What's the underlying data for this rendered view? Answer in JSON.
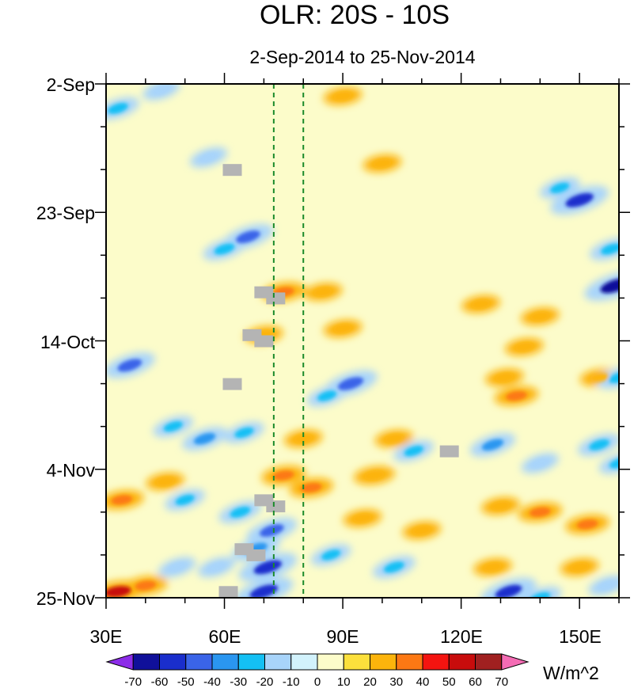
{
  "chart_data": {
    "type": "heatmap",
    "title": "OLR: 20S - 10S",
    "subtitle": "2-Sep-2014 to 25-Nov-2014",
    "x_axis": {
      "label": "",
      "range": [
        30,
        160
      ],
      "unit": "degrees east longitude",
      "ticks": [
        {
          "value": 30,
          "label": "30E"
        },
        {
          "value": 60,
          "label": "60E"
        },
        {
          "value": 90,
          "label": "90E"
        },
        {
          "value": 120,
          "label": "120E"
        },
        {
          "value": 150,
          "label": "150E"
        }
      ]
    },
    "y_axis": {
      "label": "",
      "range": [
        0,
        84
      ],
      "unit": "days since 2-Sep-2014 (time increases downward)",
      "ticks": [
        {
          "value": 0,
          "label": "2-Sep"
        },
        {
          "value": 21,
          "label": "23-Sep"
        },
        {
          "value": 42,
          "label": "14-Oct"
        },
        {
          "value": 63,
          "label": "4-Nov"
        },
        {
          "value": 84,
          "label": "25-Nov"
        }
      ]
    },
    "reference_lines": [
      {
        "name": "dashed-line-west",
        "lon": 72.5,
        "color": "#1a8a2a"
      },
      {
        "name": "dashed-line-east",
        "lon": 80,
        "color": "#1a8a2a"
      }
    ],
    "missing_color": "#b4b4b4",
    "colorbar": {
      "unit": "W/m^2",
      "levels": [
        "-70",
        "-60",
        "-50",
        "-40",
        "-30",
        "-20",
        "-10",
        "0",
        "10",
        "20",
        "30",
        "40",
        "50",
        "60",
        "70"
      ],
      "colors": [
        "#8c2ce8",
        "#10109a",
        "#1a2ecc",
        "#3a64e8",
        "#2a96f0",
        "#14c0f4",
        "#a8d4fa",
        "#d2f2fc",
        "#fcfcca",
        "#fce03c",
        "#fcb40c",
        "#fc7814",
        "#f41410",
        "#c80c0c",
        "#a02020",
        "#f46cb4"
      ]
    },
    "anomaly_features": [
      {
        "lon": 33,
        "day": 4,
        "value": -30
      },
      {
        "lon": 44,
        "day": 1,
        "value": -20
      },
      {
        "lon": 56,
        "day": 12,
        "value": -20
      },
      {
        "lon": 66,
        "day": 25,
        "value": -45
      },
      {
        "lon": 60,
        "day": 27,
        "value": -30
      },
      {
        "lon": 100,
        "day": 13,
        "value": 20
      },
      {
        "lon": 90,
        "day": 2,
        "value": 20
      },
      {
        "lon": 150,
        "day": 19,
        "value": -60
      },
      {
        "lon": 145,
        "day": 17,
        "value": -25
      },
      {
        "lon": 158,
        "day": 27,
        "value": -30
      },
      {
        "lon": 159,
        "day": 33,
        "value": -65
      },
      {
        "lon": 85,
        "day": 34,
        "value": 20
      },
      {
        "lon": 75,
        "day": 34,
        "value": 30
      },
      {
        "lon": 90,
        "day": 40,
        "value": 20
      },
      {
        "lon": 70,
        "day": 41,
        "value": 20
      },
      {
        "lon": 125,
        "day": 36,
        "value": 20
      },
      {
        "lon": 140,
        "day": 38,
        "value": 20
      },
      {
        "lon": 136,
        "day": 43,
        "value": 20
      },
      {
        "lon": 36,
        "day": 46,
        "value": -45
      },
      {
        "lon": 92,
        "day": 49,
        "value": -50
      },
      {
        "lon": 86,
        "day": 51,
        "value": -25
      },
      {
        "lon": 131,
        "day": 48,
        "value": 20
      },
      {
        "lon": 134,
        "day": 51,
        "value": 30
      },
      {
        "lon": 155,
        "day": 48,
        "value": 20
      },
      {
        "lon": 160,
        "day": 48,
        "value": -30
      },
      {
        "lon": 55,
        "day": 58,
        "value": -35
      },
      {
        "lon": 47,
        "day": 56,
        "value": -25
      },
      {
        "lon": 65,
        "day": 57,
        "value": -25
      },
      {
        "lon": 80,
        "day": 58,
        "value": 20
      },
      {
        "lon": 103,
        "day": 58,
        "value": 20
      },
      {
        "lon": 108,
        "day": 60,
        "value": -25
      },
      {
        "lon": 128,
        "day": 59,
        "value": -35
      },
      {
        "lon": 140,
        "day": 62,
        "value": -20
      },
      {
        "lon": 155,
        "day": 59,
        "value": -30
      },
      {
        "lon": 160,
        "day": 62,
        "value": -25
      },
      {
        "lon": 82,
        "day": 66,
        "value": 30
      },
      {
        "lon": 75,
        "day": 64,
        "value": 30
      },
      {
        "lon": 98,
        "day": 64,
        "value": 25
      },
      {
        "lon": 45,
        "day": 65,
        "value": 20
      },
      {
        "lon": 34,
        "day": 68,
        "value": 30
      },
      {
        "lon": 50,
        "day": 68,
        "value": -25
      },
      {
        "lon": 64,
        "day": 70,
        "value": -30
      },
      {
        "lon": 72,
        "day": 73,
        "value": -45
      },
      {
        "lon": 68,
        "day": 76,
        "value": -40
      },
      {
        "lon": 71,
        "day": 79,
        "value": -60
      },
      {
        "lon": 70,
        "day": 83,
        "value": -60
      },
      {
        "lon": 58,
        "day": 79,
        "value": -20
      },
      {
        "lon": 87,
        "day": 77,
        "value": -25
      },
      {
        "lon": 103,
        "day": 79,
        "value": -30
      },
      {
        "lon": 95,
        "day": 71,
        "value": 20
      },
      {
        "lon": 110,
        "day": 73,
        "value": 20
      },
      {
        "lon": 130,
        "day": 69,
        "value": 20
      },
      {
        "lon": 140,
        "day": 70,
        "value": 30
      },
      {
        "lon": 152,
        "day": 72,
        "value": 30
      },
      {
        "lon": 150,
        "day": 79,
        "value": 20
      },
      {
        "lon": 128,
        "day": 79,
        "value": 20
      },
      {
        "lon": 33,
        "day": 83,
        "value": 50
      },
      {
        "lon": 40,
        "day": 82,
        "value": 30
      },
      {
        "lon": 48,
        "day": 79,
        "value": -20
      },
      {
        "lon": 132,
        "day": 83,
        "value": -55
      },
      {
        "lon": 140,
        "day": 84,
        "value": -30
      },
      {
        "lon": 157,
        "day": 82,
        "value": -20
      }
    ],
    "missing_boxes": [
      {
        "lon": 62,
        "day": 14
      },
      {
        "lon": 70,
        "day": 34
      },
      {
        "lon": 73,
        "day": 35
      },
      {
        "lon": 67,
        "day": 41
      },
      {
        "lon": 70,
        "day": 42
      },
      {
        "lon": 62,
        "day": 49
      },
      {
        "lon": 117,
        "day": 60
      },
      {
        "lon": 70,
        "day": 68
      },
      {
        "lon": 73,
        "day": 69
      },
      {
        "lon": 65,
        "day": 76
      },
      {
        "lon": 68,
        "day": 77
      },
      {
        "lon": 61,
        "day": 83
      }
    ]
  }
}
